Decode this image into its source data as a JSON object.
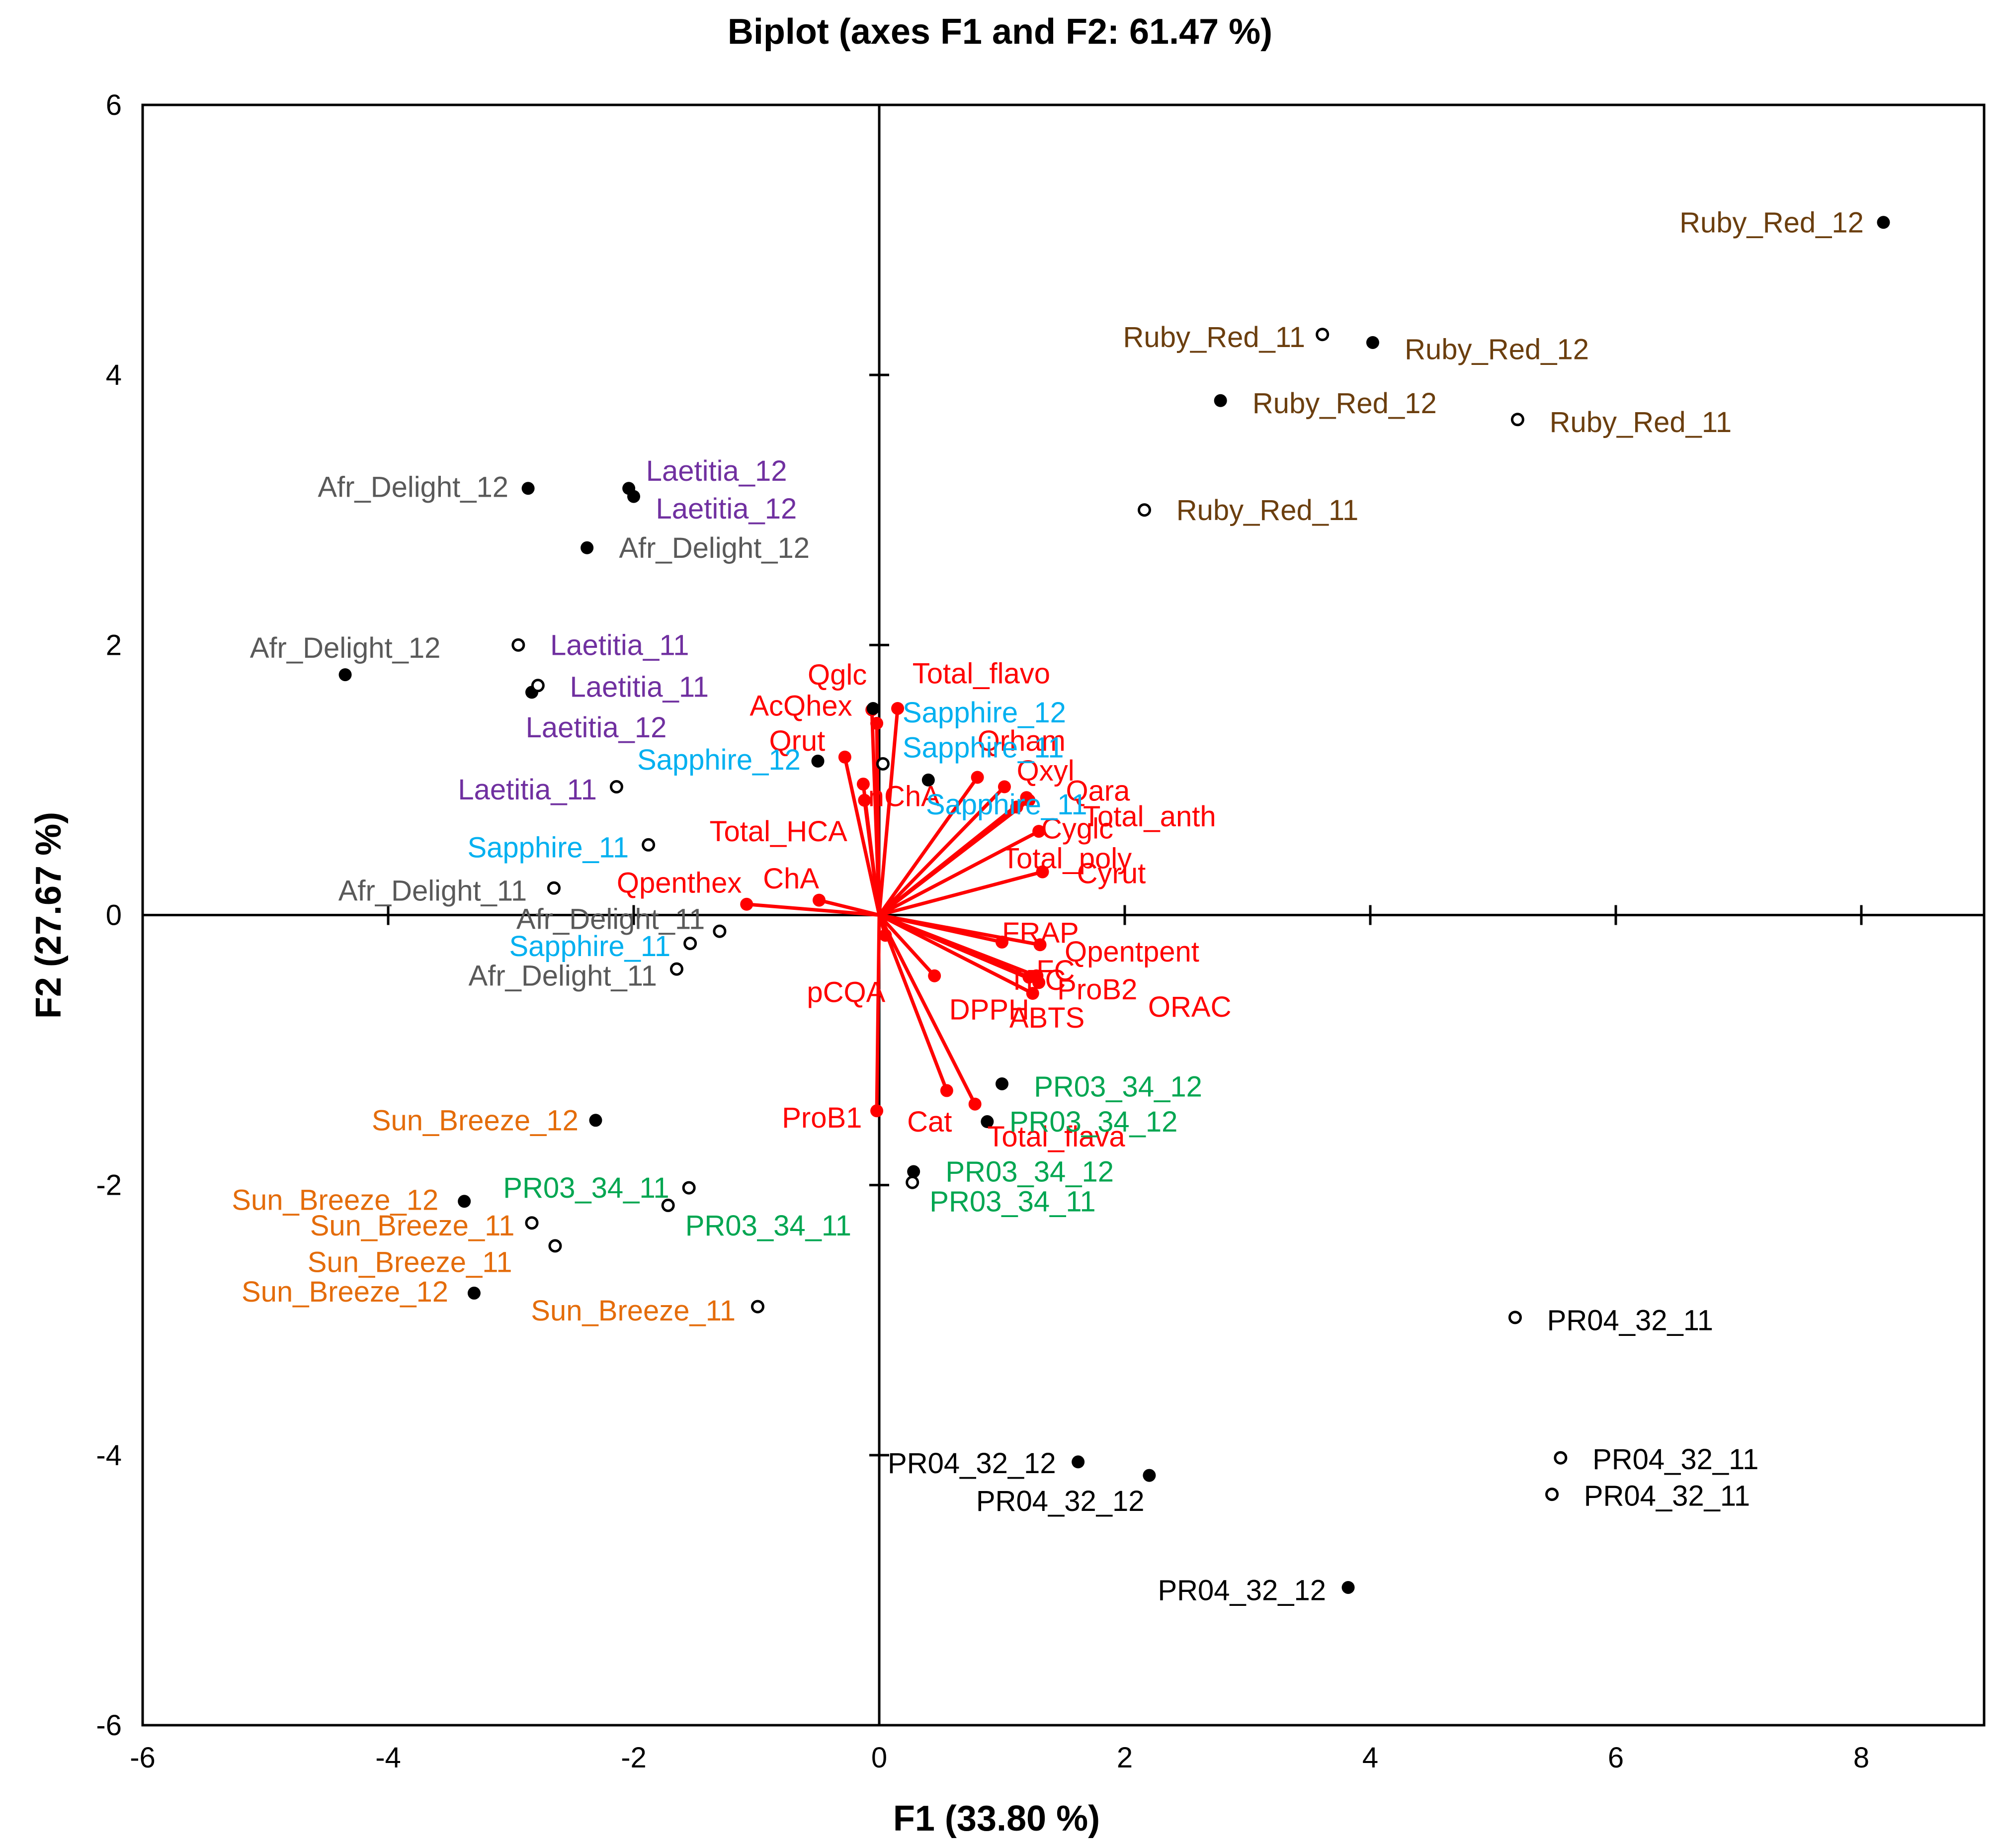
{
  "chart_data": {
    "type": "scatter",
    "subtype": "pca-biplot",
    "title": "Biplot (axes F1 and F2: 61.47 %)",
    "xlabel": "F1 (33.80 %)",
    "ylabel": "F2 (27.67 %)",
    "xlim": [
      -6,
      9
    ],
    "ylim": [
      -6,
      6
    ],
    "xticks": [
      -6,
      -4,
      -2,
      0,
      2,
      4,
      6,
      8
    ],
    "yticks": [
      -6,
      -4,
      -2,
      0,
      2,
      4,
      6
    ],
    "grid": false,
    "colors": {
      "Ruby_Red": "#6b3e0e",
      "Afr_Delight": "#595959",
      "Laetitia": "#7030a0",
      "Sapphire": "#00b0f0",
      "Sun_Breeze": "#e46c0a",
      "PR03_34": "#00a651",
      "PR04_32": "#000000",
      "variables": "#ff0000"
    },
    "observations": [
      {
        "label": "Ruby_Red_12",
        "group": "Ruby_Red",
        "x": 8.18,
        "y": 5.13,
        "filled": true,
        "anchor": "end",
        "dx": -0.16,
        "dy": 0
      },
      {
        "label": "Ruby_Red_11",
        "group": "Ruby_Red",
        "x": 3.61,
        "y": 4.3,
        "filled": false,
        "anchor": "end",
        "dx": -0.14,
        "dy": -0.02
      },
      {
        "label": "Ruby_Red_12",
        "group": "Ruby_Red",
        "x": 4.02,
        "y": 4.24,
        "filled": true,
        "anchor": "start",
        "dx": 0.26,
        "dy": -0.05
      },
      {
        "label": "Ruby_Red_12",
        "group": "Ruby_Red",
        "x": 2.78,
        "y": 3.81,
        "filled": true,
        "anchor": "start",
        "dx": 0.26,
        "dy": -0.02
      },
      {
        "label": "Ruby_Red_11",
        "group": "Ruby_Red",
        "x": 5.2,
        "y": 3.67,
        "filled": false,
        "anchor": "start",
        "dx": 0.26,
        "dy": -0.02
      },
      {
        "label": "Ruby_Red_11",
        "group": "Ruby_Red",
        "x": 2.16,
        "y": 3.0,
        "filled": false,
        "anchor": "start",
        "dx": 0.26,
        "dy": 0.0
      },
      {
        "label": "Afr_Delight_12",
        "group": "Afr_Delight",
        "x": -2.86,
        "y": 3.16,
        "filled": true,
        "anchor": "end",
        "dx": -0.16,
        "dy": 0.01
      },
      {
        "label": "Afr_Delight_12",
        "group": "Afr_Delight",
        "x": -2.38,
        "y": 2.72,
        "filled": true,
        "anchor": "start",
        "dx": 0.26,
        "dy": 0.0
      },
      {
        "label": "Afr_Delight_12",
        "group": "Afr_Delight",
        "x": -4.35,
        "y": 1.78,
        "filled": true,
        "anchor": "middle",
        "dx": 0.0,
        "dy": 0.2
      },
      {
        "label": "Afr_Delight_11",
        "group": "Afr_Delight",
        "x": -2.65,
        "y": 0.2,
        "filled": false,
        "anchor": "end",
        "dx": -0.22,
        "dy": -0.02
      },
      {
        "label": "Afr_Delight_11",
        "group": "Afr_Delight",
        "x": -1.3,
        "y": -0.12,
        "filled": false,
        "anchor": "end",
        "dx": -0.12,
        "dy": 0.09
      },
      {
        "label": "Afr_Delight_11",
        "group": "Afr_Delight",
        "x": -1.65,
        "y": -0.4,
        "filled": false,
        "anchor": "end",
        "dx": -0.16,
        "dy": -0.05
      },
      {
        "label": "Laetitia_12",
        "group": "Laetitia",
        "x": -2.04,
        "y": 3.16,
        "filled": true,
        "anchor": "start",
        "dx": 0.14,
        "dy": 0.13
      },
      {
        "label": "Laetitia_12",
        "group": "Laetitia",
        "x": -2.0,
        "y": 3.1,
        "filled": true,
        "anchor": "start",
        "dx": 0.18,
        "dy": -0.09
      },
      {
        "label": "Laetitia_12",
        "group": "Laetitia",
        "x": -2.83,
        "y": 1.65,
        "filled": true,
        "anchor": "start",
        "dx": -0.05,
        "dy": -0.26
      },
      {
        "label": "Laetitia_11",
        "group": "Laetitia",
        "x": -2.94,
        "y": 2.0,
        "filled": false,
        "anchor": "start",
        "dx": 0.26,
        "dy": 0.0
      },
      {
        "label": "Laetitia_11",
        "group": "Laetitia",
        "x": -2.78,
        "y": 1.7,
        "filled": false,
        "anchor": "start",
        "dx": 0.26,
        "dy": -0.01
      },
      {
        "label": "Laetitia_11",
        "group": "Laetitia",
        "x": -2.14,
        "y": 0.95,
        "filled": false,
        "anchor": "end",
        "dx": -0.16,
        "dy": -0.02
      },
      {
        "label": "Sapphire_12",
        "group": "Sapphire",
        "x": -0.05,
        "y": 1.53,
        "filled": true,
        "anchor": "start",
        "dx": 0.24,
        "dy": -0.03
      },
      {
        "label": "Sapphire_12",
        "group": "Sapphire",
        "x": -0.5,
        "y": 1.14,
        "filled": true,
        "anchor": "end",
        "dx": -0.14,
        "dy": 0.01
      },
      {
        "label": "Sapphire_11",
        "group": "Sapphire",
        "x": 0.4,
        "y": 1.0,
        "filled": true,
        "anchor": "start",
        "dx": -0.21,
        "dy": 0.24
      },
      {
        "label": "Sapphire_11",
        "group": "Sapphire",
        "x": 0.03,
        "y": 1.12,
        "filled": false,
        "anchor": "start",
        "dx": 0.35,
        "dy": -0.3
      },
      {
        "label": "Sapphire_11",
        "group": "Sapphire",
        "x": -1.88,
        "y": 0.52,
        "filled": false,
        "anchor": "end",
        "dx": -0.16,
        "dy": -0.02
      },
      {
        "label": "Sapphire_11",
        "group": "Sapphire",
        "x": -1.54,
        "y": -0.21,
        "filled": false,
        "anchor": "end",
        "dx": -0.16,
        "dy": -0.02
      },
      {
        "label": "Sun_Breeze_12",
        "group": "Sun_Breeze",
        "x": -2.31,
        "y": -1.52,
        "filled": true,
        "anchor": "end",
        "dx": -0.14,
        "dy": 0.0
      },
      {
        "label": "Sun_Breeze_12",
        "group": "Sun_Breeze",
        "x": -3.38,
        "y": -2.12,
        "filled": true,
        "anchor": "end",
        "dx": -0.21,
        "dy": 0.01
      },
      {
        "label": "Sun_Breeze_12",
        "group": "Sun_Breeze",
        "x": -3.3,
        "y": -2.8,
        "filled": true,
        "anchor": "end",
        "dx": -0.21,
        "dy": 0.01
      },
      {
        "label": "Sun_Breeze_11",
        "group": "Sun_Breeze",
        "x": -2.83,
        "y": -2.28,
        "filled": false,
        "anchor": "end",
        "dx": -0.14,
        "dy": -0.02
      },
      {
        "label": "Sun_Breeze_11",
        "group": "Sun_Breeze",
        "x": -2.64,
        "y": -2.45,
        "filled": false,
        "anchor": "end",
        "dx": -0.35,
        "dy": -0.12
      },
      {
        "label": "Sun_Breeze_11",
        "group": "Sun_Breeze",
        "x": -0.99,
        "y": -2.9,
        "filled": false,
        "anchor": "end",
        "dx": -0.18,
        "dy": -0.03
      },
      {
        "label": "PR03_34_11",
        "group": "PR03_34",
        "x": -1.55,
        "y": -2.02,
        "filled": false,
        "anchor": "end",
        "dx": -0.16,
        "dy": 0.0
      },
      {
        "label": "PR03_34_11",
        "group": "PR03_34",
        "x": -1.72,
        "y": -2.15,
        "filled": false,
        "anchor": "start",
        "dx": 0.14,
        "dy": -0.15
      },
      {
        "label": "PR03_34_11",
        "group": "PR03_34",
        "x": 0.27,
        "y": -1.98,
        "filled": false,
        "anchor": "start",
        "dx": 0.14,
        "dy": -0.14
      },
      {
        "label": "PR03_34_12",
        "group": "PR03_34",
        "x": 1.0,
        "y": -1.25,
        "filled": true,
        "anchor": "start",
        "dx": 0.26,
        "dy": -0.02
      },
      {
        "label": "PR03_34_12",
        "group": "PR03_34",
        "x": 0.88,
        "y": -1.53,
        "filled": true,
        "anchor": "start",
        "dx": 0.18,
        "dy": 0.0
      },
      {
        "label": "PR03_34_12",
        "group": "PR03_34",
        "x": 0.28,
        "y": -1.9,
        "filled": true,
        "anchor": "start",
        "dx": 0.26,
        "dy": 0.0
      },
      {
        "label": "PR04_32_11",
        "group": "PR04_32",
        "x": 5.18,
        "y": -2.98,
        "filled": false,
        "anchor": "start",
        "dx": 0.26,
        "dy": -0.02
      },
      {
        "label": "PR04_32_11",
        "group": "PR04_32",
        "x": 5.55,
        "y": -4.02,
        "filled": false,
        "anchor": "start",
        "dx": 0.26,
        "dy": -0.01
      },
      {
        "label": "PR04_32_11",
        "group": "PR04_32",
        "x": 5.48,
        "y": -4.29,
        "filled": false,
        "anchor": "start",
        "dx": 0.26,
        "dy": -0.01
      },
      {
        "label": "PR04_32_12",
        "group": "PR04_32",
        "x": 1.62,
        "y": -4.05,
        "filled": true,
        "anchor": "end",
        "dx": -0.18,
        "dy": -0.01
      },
      {
        "label": "PR04_32_12",
        "group": "PR04_32",
        "x": 2.2,
        "y": -4.15,
        "filled": true,
        "anchor": "end",
        "dx": -0.04,
        "dy": -0.19
      },
      {
        "label": "PR04_32_12",
        "group": "PR04_32",
        "x": 3.82,
        "y": -4.98,
        "filled": true,
        "anchor": "end",
        "dx": -0.18,
        "dy": -0.02
      }
    ],
    "variables": [
      {
        "label": "Qglc",
        "x": -0.06,
        "y": 1.52,
        "anchor": "end",
        "dx": -0.04,
        "dy": 0.26
      },
      {
        "label": "Total_flavo",
        "x": 0.15,
        "y": 1.53,
        "anchor": "start",
        "dx": 0.12,
        "dy": 0.26
      },
      {
        "label": "AcQhex",
        "x": -0.02,
        "y": 1.42,
        "anchor": "end",
        "dx": -0.2,
        "dy": 0.13
      },
      {
        "label": "Qrut",
        "x": -0.28,
        "y": 1.17,
        "anchor": "end",
        "dx": -0.16,
        "dy": 0.12
      },
      {
        "label": "nChA",
        "x": -0.13,
        "y": 0.97,
        "anchor": "start",
        "dx": 0.04,
        "dy": -0.09
      },
      {
        "label": "Total_HCA",
        "x": -0.12,
        "y": 0.85,
        "anchor": "end",
        "dx": -0.14,
        "dy": -0.23
      },
      {
        "label": "Qrham",
        "x": 0.8,
        "y": 1.02,
        "anchor": "start",
        "dx": 0.0,
        "dy": 0.27
      },
      {
        "label": "Qxyl",
        "x": 1.02,
        "y": 0.95,
        "anchor": "start",
        "dx": 0.1,
        "dy": 0.12
      },
      {
        "label": "Qara",
        "x": 1.2,
        "y": 0.87,
        "anchor": "start",
        "dx": 0.32,
        "dy": 0.05
      },
      {
        "label": "Total_anth",
        "x": 1.22,
        "y": 0.85,
        "anchor": "start",
        "dx": 0.44,
        "dy": -0.12
      },
      {
        "label": "Cyglc",
        "x": 1.12,
        "y": 0.8,
        "anchor": "start",
        "dx": 0.2,
        "dy": -0.16
      },
      {
        "label": "Total_poly",
        "x": 1.3,
        "y": 0.62,
        "anchor": "start",
        "dx": -0.3,
        "dy": -0.2
      },
      {
        "label": "Cyrut",
        "x": 1.33,
        "y": 0.32,
        "anchor": "start",
        "dx": 0.28,
        "dy": -0.01
      },
      {
        "label": "Qpenthex",
        "x": -1.08,
        "y": 0.08,
        "anchor": "end",
        "dx": -0.04,
        "dy": 0.16
      },
      {
        "label": "ChA",
        "x": -0.49,
        "y": 0.11,
        "anchor": "end",
        "dx": 0.0,
        "dy": 0.16
      },
      {
        "label": "pCQA",
        "x": 0.05,
        "y": -0.15,
        "anchor": "end",
        "dx": 0.0,
        "dy": -0.42
      },
      {
        "label": "FRAP",
        "x": 1.0,
        "y": -0.2,
        "anchor": "start",
        "dx": 0.0,
        "dy": 0.07
      },
      {
        "label": "Qpentpent",
        "x": 1.31,
        "y": -0.22,
        "anchor": "start",
        "dx": 0.2,
        "dy": -0.05
      },
      {
        "label": "TPC",
        "x": 1.22,
        "y": -0.46,
        "anchor": "start",
        "dx": -0.17,
        "dy": -0.02
      },
      {
        "label": "FC",
        "x": 1.28,
        "y": -0.45,
        "anchor": "start",
        "dx": -0.0,
        "dy": 0.04
      },
      {
        "label": "ProB2",
        "x": 1.3,
        "y": -0.5,
        "anchor": "start",
        "dx": 0.15,
        "dy": -0.05
      },
      {
        "label": "ABTS",
        "x": 1.25,
        "y": -0.58,
        "anchor": "start",
        "dx": -0.19,
        "dy": -0.18
      },
      {
        "label": "ORAC",
        "x": 1.3,
        "y": -0.5,
        "anchor": "start",
        "dx": 0.89,
        "dy": -0.18
      },
      {
        "label": "DPPH",
        "x": 0.45,
        "y": -0.45,
        "anchor": "start",
        "dx": 0.12,
        "dy": -0.25
      },
      {
        "label": "ProB1",
        "x": -0.02,
        "y": -1.45,
        "anchor": "end",
        "dx": -0.12,
        "dy": -0.05
      },
      {
        "label": "Cat",
        "x": 0.55,
        "y": -1.3,
        "anchor": "middle",
        "dx": -0.14,
        "dy": -0.23
      },
      {
        "label": "Total_flava",
        "x": 0.78,
        "y": -1.4,
        "anchor": "start",
        "dx": 0.1,
        "dy": -0.24
      }
    ]
  }
}
